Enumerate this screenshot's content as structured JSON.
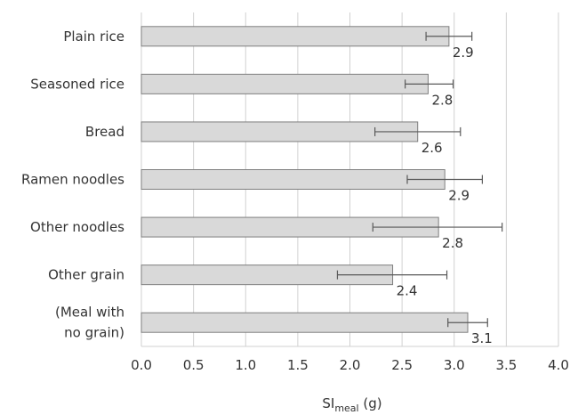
{
  "chart_data": {
    "type": "bar",
    "orientation": "horizontal",
    "categories": [
      "Plain rice",
      "Seasoned rice",
      "Bread",
      "Ramen noodles",
      "Other noodles",
      "Other grain",
      "(Meal with no grain)"
    ],
    "category_lines": [
      [
        "Plain rice"
      ],
      [
        "Seasoned rice"
      ],
      [
        "Bread"
      ],
      [
        "Ramen noodles"
      ],
      [
        "Other noodles"
      ],
      [
        "Other grain"
      ],
      [
        "(Meal with",
        "no grain)"
      ]
    ],
    "values": [
      2.95,
      2.75,
      2.65,
      2.91,
      2.85,
      2.41,
      3.13
    ],
    "error_low": [
      2.73,
      2.53,
      2.24,
      2.55,
      2.22,
      1.88,
      2.94
    ],
    "error_high": [
      3.17,
      2.99,
      3.06,
      3.27,
      3.46,
      2.93,
      3.32
    ],
    "data_labels": [
      "2.9",
      "2.8",
      "2.6",
      "2.9",
      "2.8",
      "2.4",
      "3.1"
    ],
    "xlim": [
      0.0,
      4.0
    ],
    "xticks": [
      "0.0",
      "0.5",
      "1.0",
      "1.5",
      "2.0",
      "2.5",
      "3.0",
      "3.5",
      "4.0"
    ],
    "xlabel": {
      "base": "SI",
      "subscript": "meal",
      "unit": " (g)"
    },
    "ylabel": "",
    "title": "",
    "grid": "vertical",
    "legend": "none",
    "colors": {
      "bar_fill": "#d9d9d9",
      "bar_stroke": "#7f7f7f",
      "grid": "#d0d0d0",
      "error_bar": "#595959",
      "text": "#333333"
    }
  }
}
